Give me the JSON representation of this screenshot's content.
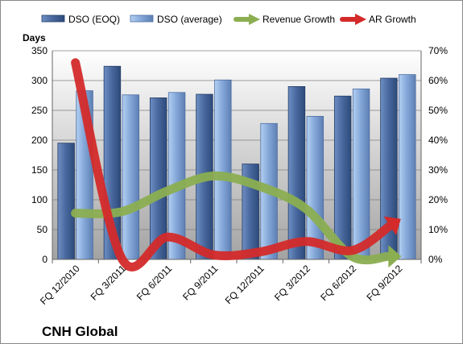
{
  "chart_data": {
    "type": "bar",
    "title": "CNH Global",
    "ylabel": "Days",
    "ylim": [
      0,
      350
    ],
    "y_ticks": [
      "0",
      "50",
      "100",
      "150",
      "200",
      "250",
      "300",
      "350"
    ],
    "y2lim": [
      0,
      70
    ],
    "y2_ticks": [
      "0%",
      "10%",
      "20%",
      "30%",
      "40%",
      "50%",
      "60%",
      "70%"
    ],
    "categories": [
      "FQ 12/2010",
      "FQ 3/2011",
      "FQ 6/2011",
      "FQ 9/2011",
      "FQ 12/2011",
      "FQ 3/2012",
      "FQ 6/2012",
      "FQ 9/2012"
    ],
    "legend_position": "top",
    "grid": true,
    "series": [
      {
        "name": "DSO (EOQ)",
        "kind": "bar",
        "axis": "left",
        "color": "#4e6fa3",
        "values": [
          195,
          324,
          271,
          277,
          160,
          290,
          274,
          304
        ]
      },
      {
        "name": "DSO (average)",
        "kind": "bar",
        "axis": "left",
        "color": "#8fb2e0",
        "values": [
          283,
          276,
          280,
          301,
          228,
          240,
          286,
          310
        ]
      },
      {
        "name": "Revenue Growth",
        "kind": "line",
        "axis": "right",
        "color": "#8bae51",
        "values": [
          15.5,
          16,
          23,
          28,
          24.5,
          17,
          1,
          1
        ]
      },
      {
        "name": "AR Growth",
        "kind": "line",
        "axis": "right",
        "color": "#d42a2a",
        "values": [
          66,
          0.5,
          7.5,
          1.5,
          2.5,
          6,
          3,
          13
        ]
      }
    ]
  }
}
